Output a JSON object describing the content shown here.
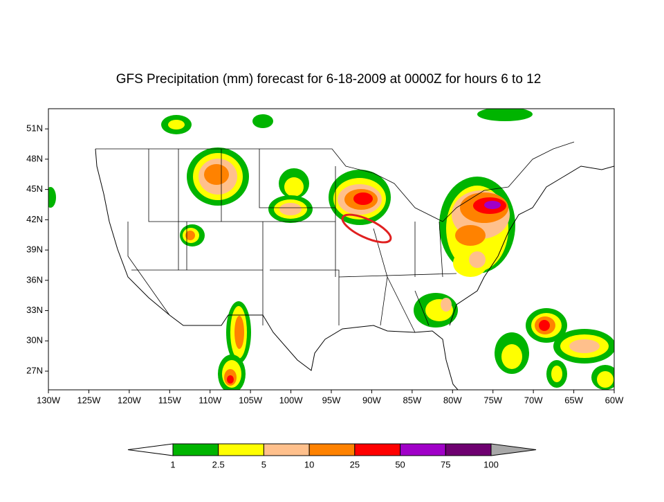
{
  "map": {
    "title": "GFS Precipitation (mm) forecast for 6-18-2009 at 0000Z for hours 6 to 12",
    "xlim": [
      -130,
      -60
    ],
    "ylim": [
      25.15,
      53
    ],
    "xticks": [
      {
        "value": -130,
        "label": "130W"
      },
      {
        "value": -125,
        "label": "125W"
      },
      {
        "value": -120,
        "label": "120W"
      },
      {
        "value": -115,
        "label": "115W"
      },
      {
        "value": -110,
        "label": "110W"
      },
      {
        "value": -105,
        "label": "105W"
      },
      {
        "value": -100,
        "label": "100W"
      },
      {
        "value": -95,
        "label": "95W"
      },
      {
        "value": -90,
        "label": "90W"
      },
      {
        "value": -85,
        "label": "85W"
      },
      {
        "value": -80,
        "label": "80W"
      },
      {
        "value": -75,
        "label": "75W"
      },
      {
        "value": -70,
        "label": "70W"
      },
      {
        "value": -65,
        "label": "65W"
      },
      {
        "value": -60,
        "label": "60W"
      }
    ],
    "yticks": [
      {
        "value": 27,
        "label": "27N"
      },
      {
        "value": 30,
        "label": "30N"
      },
      {
        "value": 33,
        "label": "33N"
      },
      {
        "value": 36,
        "label": "36N"
      },
      {
        "value": 39,
        "label": "39N"
      },
      {
        "value": 42,
        "label": "42N"
      },
      {
        "value": 45,
        "label": "45N"
      },
      {
        "value": 48,
        "label": "48N"
      },
      {
        "value": 51,
        "label": "51N"
      }
    ],
    "colorbar": {
      "levels": [
        1,
        2.5,
        5,
        10,
        25,
        50,
        75,
        100
      ],
      "colors": [
        "#ffffff",
        "#00b400",
        "#ffff00",
        "#ffc08c",
        "#ff8200",
        "#ff0000",
        "#a000c8",
        "#6e0070",
        "#a8a8a8"
      ]
    }
  }
}
